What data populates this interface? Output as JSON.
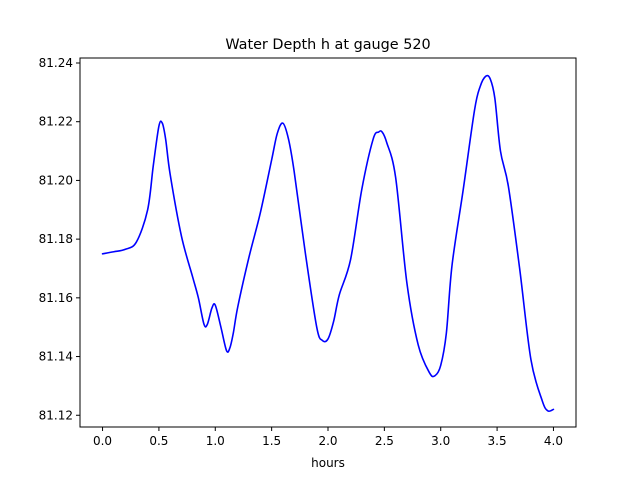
{
  "chart_data": {
    "type": "line",
    "title": "Water Depth h at gauge 520",
    "xlabel": "hours",
    "ylabel": "",
    "xlim": [
      -0.2,
      4.2
    ],
    "ylim": [
      81.116,
      81.2417
    ],
    "xticks": [
      0.0,
      0.5,
      1.0,
      1.5,
      2.0,
      2.5,
      3.0,
      3.5,
      4.0
    ],
    "xtick_labels": [
      "0.0",
      "0.5",
      "1.0",
      "1.5",
      "2.0",
      "2.5",
      "3.0",
      "3.5",
      "4.0"
    ],
    "yticks": [
      81.12,
      81.14,
      81.16,
      81.18,
      81.2,
      81.22,
      81.24
    ],
    "ytick_labels": [
      "81.12",
      "81.14",
      "81.16",
      "81.18",
      "81.20",
      "81.22",
      "81.24"
    ],
    "grid": false,
    "series": [
      {
        "color": "#0000ff",
        "x": [
          0.0,
          0.1,
          0.2,
          0.3,
          0.4,
          0.45,
          0.5,
          0.53,
          0.56,
          0.6,
          0.7,
          0.8,
          0.85,
          0.9,
          0.93,
          0.97,
          1.0,
          1.05,
          1.1,
          1.13,
          1.16,
          1.2,
          1.3,
          1.4,
          1.5,
          1.55,
          1.6,
          1.65,
          1.7,
          1.8,
          1.9,
          1.95,
          2.0,
          2.05,
          2.1,
          2.2,
          2.3,
          2.4,
          2.45,
          2.48,
          2.52,
          2.6,
          2.7,
          2.8,
          2.9,
          2.95,
          3.0,
          3.05,
          3.1,
          3.2,
          3.3,
          3.35,
          3.4,
          3.44,
          3.48,
          3.53,
          3.6,
          3.7,
          3.8,
          3.9,
          3.95,
          4.0
        ],
        "y": [
          81.175,
          81.1757,
          81.1765,
          81.179,
          81.19,
          81.205,
          81.2185,
          81.2195,
          81.214,
          81.202,
          81.181,
          81.167,
          81.16,
          81.151,
          81.151,
          81.1565,
          81.1575,
          81.15,
          81.142,
          81.143,
          81.148,
          81.157,
          81.174,
          81.189,
          81.207,
          81.216,
          81.2195,
          81.214,
          81.203,
          81.175,
          81.15,
          81.1455,
          81.146,
          81.152,
          81.161,
          81.173,
          81.197,
          81.214,
          81.2165,
          81.2165,
          81.213,
          81.201,
          81.165,
          81.144,
          81.1345,
          81.1335,
          81.137,
          81.148,
          81.171,
          81.197,
          81.224,
          81.232,
          81.2355,
          81.2345,
          81.228,
          81.21,
          81.198,
          81.17,
          81.139,
          81.125,
          81.1215,
          81.122
        ]
      }
    ]
  }
}
